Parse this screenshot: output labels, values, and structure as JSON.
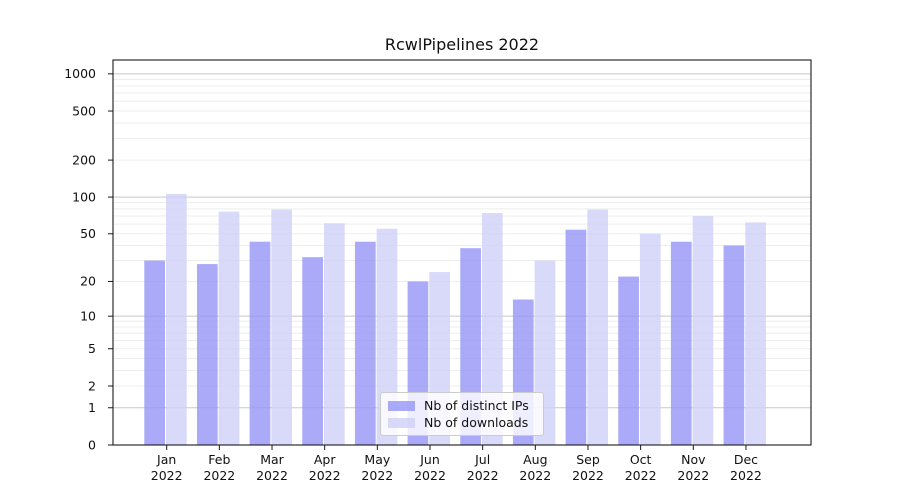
{
  "chart_data": {
    "type": "bar",
    "title": "RcwlPipelines 2022",
    "categories": [
      "Jan",
      "Feb",
      "Mar",
      "Apr",
      "May",
      "Jun",
      "Jul",
      "Aug",
      "Sep",
      "Oct",
      "Nov",
      "Dec"
    ],
    "year_label": "2022",
    "series": [
      {
        "name": "Nb of distinct IPs",
        "color": "#9595f6",
        "values": [
          30,
          28,
          43,
          32,
          43,
          20,
          38,
          14,
          54,
          22,
          43,
          40
        ]
      },
      {
        "name": "Nb of downloads",
        "color": "#d0d0f8",
        "values": [
          106,
          76,
          79,
          61,
          55,
          24,
          74,
          30,
          79,
          50,
          70,
          62
        ]
      }
    ],
    "bar_fill_opacity": 0.8,
    "y_scale": "log10(1+x)",
    "y_ticks": [
      0,
      1,
      2,
      5,
      10,
      20,
      50,
      100,
      200,
      500,
      1000
    ],
    "y_major_gridlines": [
      1,
      10,
      100,
      1000
    ],
    "y_minor_gridlines": [
      2,
      3,
      4,
      5,
      6,
      7,
      8,
      9,
      20,
      30,
      40,
      50,
      60,
      70,
      80,
      90,
      200,
      300,
      400,
      500,
      600,
      700,
      800,
      900
    ],
    "ylim": [
      0,
      1300
    ],
    "xlabel": "",
    "ylabel": "",
    "grid": true,
    "legend": {
      "position": "lower center",
      "entries": [
        "Nb of distinct IPs",
        "Nb of downloads"
      ]
    },
    "colors": {
      "major_grid": "#c8c8c8",
      "minor_grid": "#ededed",
      "spine": "#1a1a1a",
      "text": "#111111",
      "background": "#ffffff"
    }
  }
}
